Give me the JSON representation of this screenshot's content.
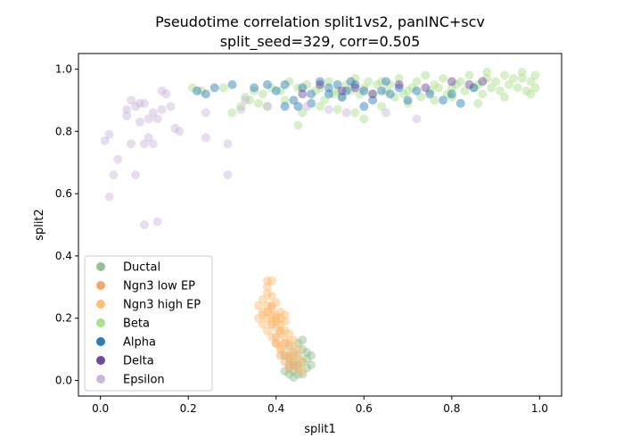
{
  "chart_data": {
    "type": "scatter",
    "title": "Pseudotime correlation split1vs2, panINC+scv",
    "subtitle": "split_seed=329, corr=0.505",
    "xlabel": "split1",
    "ylabel": "split2",
    "xlim": [
      -0.05,
      1.05
    ],
    "ylim": [
      -0.05,
      1.05
    ],
    "xticks": [
      "0.0",
      "0.2",
      "0.4",
      "0.6",
      "0.8",
      "1.0"
    ],
    "yticks": [
      "0.0",
      "0.2",
      "0.4",
      "0.6",
      "0.8",
      "1.0"
    ],
    "grid": false,
    "legend_position": "lower-left",
    "series": [
      {
        "name": "Ductal",
        "color": "#8fbc8f",
        "points": [
          [
            0.43,
            0.05
          ],
          [
            0.44,
            0.03
          ],
          [
            0.45,
            0.08
          ],
          [
            0.46,
            0.06
          ],
          [
            0.47,
            0.04
          ],
          [
            0.44,
            0.09
          ],
          [
            0.45,
            0.02
          ],
          [
            0.46,
            0.1
          ],
          [
            0.43,
            0.07
          ],
          [
            0.47,
            0.07
          ],
          [
            0.42,
            0.03
          ],
          [
            0.48,
            0.05
          ],
          [
            0.45,
            0.12
          ],
          [
            0.44,
            0.06
          ],
          [
            0.46,
            0.02
          ],
          [
            0.43,
            0.11
          ],
          [
            0.47,
            0.09
          ],
          [
            0.45,
            0.05
          ],
          [
            0.42,
            0.08
          ],
          [
            0.46,
            0.13
          ],
          [
            0.44,
            0.01
          ],
          [
            0.48,
            0.08
          ],
          [
            0.45,
            0.04
          ],
          [
            0.43,
            0.02
          ]
        ]
      },
      {
        "name": "Ngn3 low EP",
        "color": "#f4a460",
        "points": [
          [
            0.38,
            0.22
          ],
          [
            0.39,
            0.18
          ],
          [
            0.4,
            0.14
          ],
          [
            0.41,
            0.1
          ],
          [
            0.42,
            0.06
          ],
          [
            0.43,
            0.04
          ],
          [
            0.41,
            0.16
          ],
          [
            0.4,
            0.2
          ],
          [
            0.39,
            0.24
          ],
          [
            0.42,
            0.12
          ],
          [
            0.43,
            0.08
          ],
          [
            0.44,
            0.05
          ],
          [
            0.41,
            0.08
          ],
          [
            0.4,
            0.12
          ]
        ]
      },
      {
        "name": "Ngn3 high EP",
        "color": "#ffbb6b",
        "points": [
          [
            0.36,
            0.24
          ],
          [
            0.37,
            0.22
          ],
          [
            0.38,
            0.2
          ],
          [
            0.39,
            0.19
          ],
          [
            0.4,
            0.17
          ],
          [
            0.41,
            0.15
          ],
          [
            0.42,
            0.13
          ],
          [
            0.37,
            0.26
          ],
          [
            0.38,
            0.28
          ],
          [
            0.39,
            0.23
          ],
          [
            0.4,
            0.21
          ],
          [
            0.41,
            0.18
          ],
          [
            0.42,
            0.16
          ],
          [
            0.43,
            0.12
          ],
          [
            0.44,
            0.1
          ],
          [
            0.45,
            0.07
          ],
          [
            0.36,
            0.2
          ],
          [
            0.37,
            0.18
          ],
          [
            0.38,
            0.16
          ],
          [
            0.39,
            0.14
          ],
          [
            0.4,
            0.12
          ],
          [
            0.41,
            0.11
          ],
          [
            0.42,
            0.09
          ],
          [
            0.43,
            0.07
          ],
          [
            0.38,
            0.3
          ],
          [
            0.39,
            0.27
          ],
          [
            0.4,
            0.25
          ],
          [
            0.41,
            0.22
          ],
          [
            0.42,
            0.19
          ],
          [
            0.43,
            0.15
          ],
          [
            0.44,
            0.13
          ],
          [
            0.45,
            0.1
          ],
          [
            0.46,
            0.06
          ],
          [
            0.37,
            0.21
          ],
          [
            0.38,
            0.24
          ],
          [
            0.39,
            0.21
          ],
          [
            0.4,
            0.19
          ],
          [
            0.41,
            0.2
          ],
          [
            0.42,
            0.21
          ],
          [
            0.44,
            0.08
          ],
          [
            0.45,
            0.04
          ],
          [
            0.46,
            0.03
          ],
          [
            0.39,
            0.32
          ],
          [
            0.38,
            0.32
          ]
        ]
      },
      {
        "name": "Beta",
        "color": "#a8dd8a",
        "points": [
          [
            0.5,
            0.94
          ],
          [
            0.52,
            0.96
          ],
          [
            0.54,
            0.93
          ],
          [
            0.56,
            0.95
          ],
          [
            0.58,
            0.97
          ],
          [
            0.6,
            0.94
          ],
          [
            0.62,
            0.92
          ],
          [
            0.64,
            0.96
          ],
          [
            0.66,
            0.95
          ],
          [
            0.68,
            0.97
          ],
          [
            0.7,
            0.93
          ],
          [
            0.72,
            0.96
          ],
          [
            0.74,
            0.98
          ],
          [
            0.76,
            0.95
          ],
          [
            0.78,
            0.97
          ],
          [
            0.8,
            0.94
          ],
          [
            0.82,
            0.96
          ],
          [
            0.84,
            0.98
          ],
          [
            0.86,
            0.95
          ],
          [
            0.88,
            0.97
          ],
          [
            0.9,
            0.96
          ],
          [
            0.92,
            0.98
          ],
          [
            0.94,
            0.97
          ],
          [
            0.96,
            0.99
          ],
          [
            0.98,
            0.96
          ],
          [
            0.99,
            0.98
          ],
          [
            0.97,
            0.93
          ],
          [
            0.95,
            0.94
          ],
          [
            0.93,
            0.95
          ],
          [
            0.91,
            0.93
          ],
          [
            0.89,
            0.94
          ],
          [
            0.87,
            0.92
          ],
          [
            0.85,
            0.94
          ],
          [
            0.83,
            0.93
          ],
          [
            0.81,
            0.95
          ],
          [
            0.79,
            0.92
          ],
          [
            0.77,
            0.94
          ],
          [
            0.75,
            0.93
          ],
          [
            0.73,
            0.91
          ],
          [
            0.71,
            0.94
          ],
          [
            0.69,
            0.92
          ],
          [
            0.67,
            0.91
          ],
          [
            0.65,
            0.93
          ],
          [
            0.63,
            0.95
          ],
          [
            0.61,
            0.96
          ],
          [
            0.59,
            0.92
          ],
          [
            0.57,
            0.93
          ],
          [
            0.55,
            0.91
          ],
          [
            0.53,
            0.92
          ],
          [
            0.51,
            0.9
          ],
          [
            0.49,
            0.93
          ],
          [
            0.47,
            0.95
          ],
          [
            0.45,
            0.94
          ],
          [
            0.43,
            0.96
          ],
          [
            0.41,
            0.93
          ],
          [
            0.39,
            0.94
          ],
          [
            0.37,
            0.92
          ],
          [
            0.35,
            0.93
          ],
          [
            0.34,
            0.9
          ],
          [
            0.32,
            0.88
          ],
          [
            0.3,
            0.86
          ],
          [
            0.33,
            0.91
          ],
          [
            0.36,
            0.89
          ],
          [
            0.38,
            0.88
          ],
          [
            0.42,
            0.9
          ],
          [
            0.46,
            0.86
          ],
          [
            0.5,
            0.88
          ],
          [
            0.54,
            0.87
          ],
          [
            0.58,
            0.86
          ],
          [
            0.6,
            0.84
          ],
          [
            0.64,
            0.88
          ],
          [
            0.7,
            0.89
          ],
          [
            0.76,
            0.9
          ],
          [
            0.8,
            0.91
          ],
          [
            0.86,
            0.89
          ],
          [
            0.92,
            0.91
          ],
          [
            0.98,
            0.92
          ],
          [
            0.99,
            0.94
          ],
          [
            0.21,
            0.94
          ],
          [
            0.23,
            0.93
          ],
          [
            0.45,
            0.82
          ],
          [
            0.28,
            0.94
          ],
          [
            0.88,
            0.99
          ],
          [
            0.96,
            0.97
          ]
        ]
      },
      {
        "name": "Alpha",
        "color": "#1f77b4",
        "points": [
          [
            0.22,
            0.93
          ],
          [
            0.24,
            0.92
          ],
          [
            0.3,
            0.95
          ],
          [
            0.35,
            0.94
          ],
          [
            0.38,
            0.95
          ],
          [
            0.4,
            0.93
          ],
          [
            0.42,
            0.95
          ],
          [
            0.44,
            0.9
          ],
          [
            0.45,
            0.88
          ],
          [
            0.46,
            0.94
          ],
          [
            0.48,
            0.92
          ],
          [
            0.5,
            0.96
          ],
          [
            0.52,
            0.94
          ],
          [
            0.54,
            0.95
          ],
          [
            0.55,
            0.91
          ],
          [
            0.56,
            0.93
          ],
          [
            0.58,
            0.95
          ],
          [
            0.6,
            0.93
          ],
          [
            0.62,
            0.9
          ],
          [
            0.64,
            0.93
          ],
          [
            0.65,
            0.96
          ],
          [
            0.66,
            0.92
          ],
          [
            0.68,
            0.94
          ],
          [
            0.7,
            0.9
          ],
          [
            0.72,
            0.93
          ],
          [
            0.75,
            0.92
          ],
          [
            0.78,
            0.9
          ],
          [
            0.8,
            0.92
          ],
          [
            0.82,
            0.89
          ],
          [
            0.85,
            0.94
          ],
          [
            0.48,
            0.89
          ],
          [
            0.42,
            0.88
          ],
          [
            0.52,
            0.92
          ],
          [
            0.57,
            0.96
          ],
          [
            0.6,
            0.88
          ],
          [
            0.26,
            0.94
          ]
        ]
      },
      {
        "name": "Delta",
        "color": "#6a3d9a",
        "points": [
          [
            0.46,
            0.92
          ],
          [
            0.5,
            0.95
          ],
          [
            0.55,
            0.93
          ],
          [
            0.58,
            0.94
          ],
          [
            0.62,
            0.92
          ],
          [
            0.68,
            0.95
          ],
          [
            0.74,
            0.94
          ],
          [
            0.8,
            0.96
          ],
          [
            0.84,
            0.95
          ],
          [
            0.87,
            0.96
          ]
        ]
      },
      {
        "name": "Epsilon",
        "color": "#c9b3da",
        "points": [
          [
            0.01,
            0.77
          ],
          [
            0.02,
            0.79
          ],
          [
            0.03,
            0.66
          ],
          [
            0.04,
            0.71
          ],
          [
            0.02,
            0.59
          ],
          [
            0.06,
            0.85
          ],
          [
            0.07,
            0.9
          ],
          [
            0.08,
            0.88
          ],
          [
            0.09,
            0.83
          ],
          [
            0.1,
            0.89
          ],
          [
            0.11,
            0.84
          ],
          [
            0.12,
            0.76
          ],
          [
            0.13,
            0.84
          ],
          [
            0.14,
            0.93
          ],
          [
            0.15,
            0.92
          ],
          [
            0.16,
            0.88
          ],
          [
            0.17,
            0.81
          ],
          [
            0.18,
            0.8
          ],
          [
            0.24,
            0.86
          ],
          [
            0.24,
            0.78
          ],
          [
            0.29,
            0.76
          ],
          [
            0.29,
            0.66
          ],
          [
            0.1,
            0.5
          ],
          [
            0.13,
            0.51
          ],
          [
            0.07,
            0.76
          ],
          [
            0.08,
            0.66
          ],
          [
            0.1,
            0.76
          ],
          [
            0.11,
            0.78
          ],
          [
            0.12,
            0.86
          ],
          [
            0.32,
            0.87
          ],
          [
            0.33,
            0.9
          ],
          [
            0.38,
            0.88
          ],
          [
            0.47,
            0.88
          ],
          [
            0.52,
            0.87
          ],
          [
            0.56,
            0.86
          ],
          [
            0.65,
            0.86
          ],
          [
            0.72,
            0.84
          ],
          [
            0.06,
            0.87
          ],
          [
            0.09,
            0.89
          ],
          [
            0.14,
            0.87
          ]
        ]
      }
    ]
  }
}
